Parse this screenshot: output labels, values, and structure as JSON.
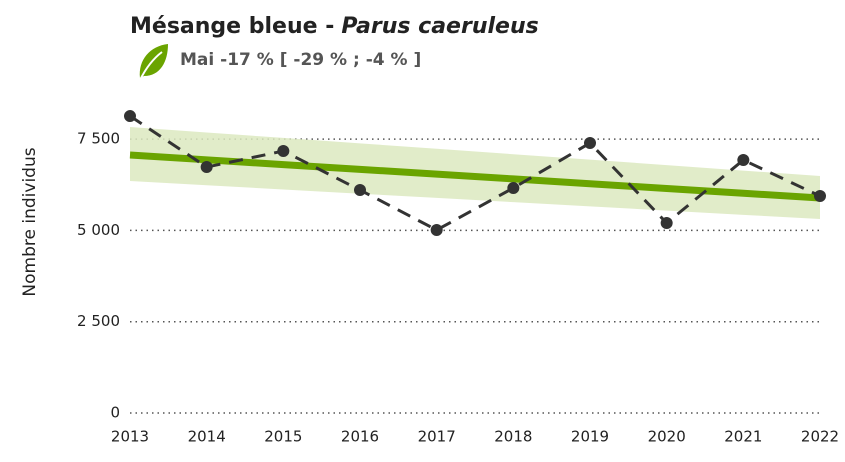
{
  "chart_data": {
    "type": "line",
    "title": "Mésange bleue -",
    "title_italic": "Parus caeruleus",
    "subtitle": "Mai -17 % [ -29 % ; -4 % ]",
    "y_label": "Nombre individus",
    "categories": [
      "2013",
      "2014",
      "2015",
      "2016",
      "2017",
      "2018",
      "2019",
      "2020",
      "2021",
      "2022"
    ],
    "series": [
      {
        "color": "#333333",
        "dashed": true,
        "markers": true,
        "values": [
          8130,
          6734,
          7172,
          6105,
          5010,
          6160,
          7391,
          5201,
          6926,
          5940
        ]
      },
      {
        "color": "#6aa400",
        "dashed": false,
        "markers": false,
        "values": [
          7063,
          6932,
          6801,
          6671,
          6540,
          6409,
          6278,
          6147,
          6017,
          5886
        ]
      }
    ],
    "band": {
      "color": "#dce9c0",
      "lower": [
        6351,
        6235,
        6120,
        6004,
        5889,
        5773,
        5657,
        5542,
        5426,
        5311
      ],
      "upper": [
        7830,
        7681,
        7532,
        7383,
        7234,
        7085,
        6936,
        6787,
        6637,
        6488
      ]
    },
    "ylim": [
      0,
      8200
    ],
    "yticks": [
      0,
      {
        "value": 2500,
        "label": "2 500"
      },
      {
        "value": 5000,
        "label": "5 000"
      },
      {
        "value": 7500,
        "label": "7 500"
      }
    ],
    "grid": true
  }
}
